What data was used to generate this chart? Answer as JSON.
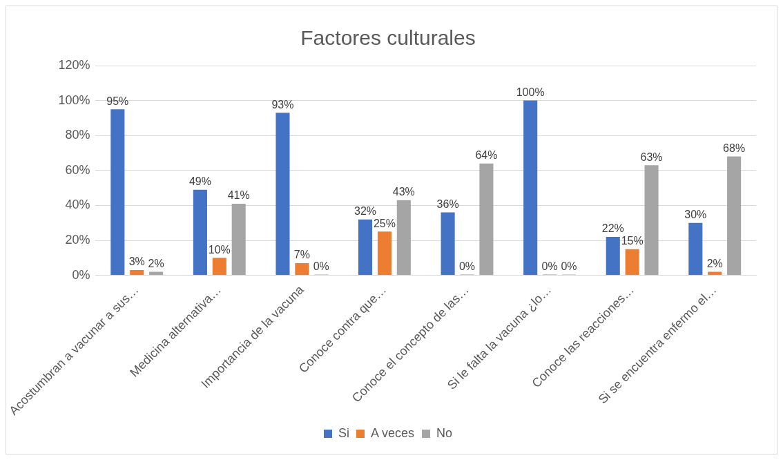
{
  "chart_data": {
    "type": "bar",
    "title": "Factores culturales",
    "categories": [
      "Acostumbran a vacunar a sus…",
      "Medicina alternativa…",
      "Importancia de la vacuna",
      "Conoce contra que…",
      "Conoce el concepto de las…",
      "Si le falta la vacuna ¿lo…",
      "Conoce las reacciones…",
      "Si se encuentra enfermo el…"
    ],
    "series": [
      {
        "name": "Si",
        "color": "#4472c4",
        "values": [
          95,
          49,
          93,
          32,
          36,
          100,
          22,
          30
        ],
        "value_labels": [
          "95%",
          "49%",
          "93%",
          "32%",
          "36%",
          "100%",
          "22%",
          "30%"
        ]
      },
      {
        "name": "A veces",
        "color": "#ed7d31",
        "values": [
          3,
          10,
          7,
          25,
          0,
          0,
          15,
          2
        ],
        "value_labels": [
          "3%",
          "10%",
          "7%",
          "25%",
          "0%",
          "0%",
          "15%",
          "2%"
        ]
      },
      {
        "name": "No",
        "color": "#a5a5a5",
        "values": [
          2,
          41,
          0,
          43,
          64,
          0,
          63,
          68
        ],
        "value_labels": [
          "2%",
          "41%",
          "0%",
          "43%",
          "64%",
          "0%",
          "63%",
          "68%"
        ]
      }
    ],
    "ylim": [
      0,
      120
    ],
    "yticks": [
      {
        "value": 0,
        "label": "0%"
      },
      {
        "value": 20,
        "label": "20%"
      },
      {
        "value": 40,
        "label": "40%"
      },
      {
        "value": 60,
        "label": "60%"
      },
      {
        "value": 80,
        "label": "80%"
      },
      {
        "value": 100,
        "label": "100%"
      },
      {
        "value": 120,
        "label": "120%"
      }
    ],
    "grid": "y",
    "legend": "bottom"
  }
}
